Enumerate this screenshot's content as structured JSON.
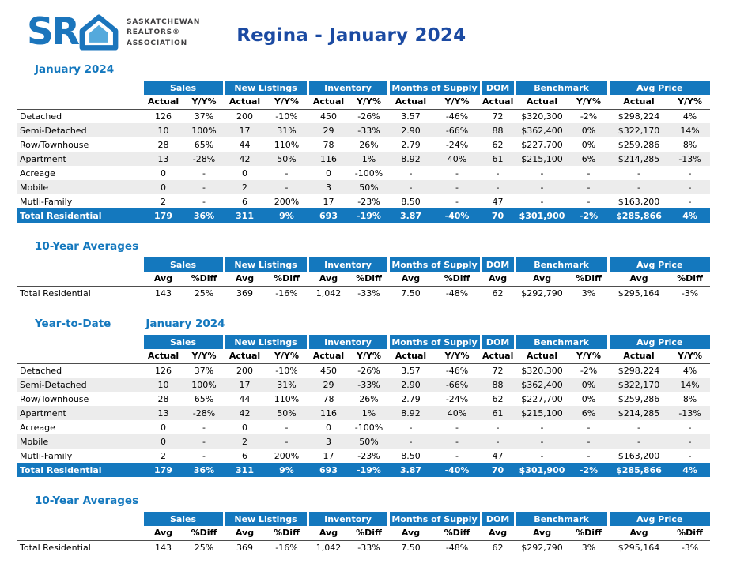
{
  "colors": {
    "table_header_blue": "#1478BE",
    "total_row_blue": "#1478BE",
    "title_blue": "#1B4AA2",
    "section_heading_blue": "#1478BE",
    "stripe_gray": "#ECECEC",
    "logo_blue": "#1B75BC",
    "logo_light_blue": "#54A9DC",
    "logo_text_gray": "#414042"
  },
  "header": {
    "logo_sr": "SR",
    "logo_org": [
      "SASKATCHEWAN",
      "REALTORS®",
      "ASSOCIATION"
    ],
    "title": "Regina - January 2024"
  },
  "column_groups": [
    {
      "label": "Sales",
      "span": 2
    },
    {
      "label": "New Listings",
      "span": 2
    },
    {
      "label": "Inventory",
      "span": 2
    },
    {
      "label": "Months of Supply",
      "span": 2
    },
    {
      "label": "DOM",
      "span": 1
    },
    {
      "label": "Benchmark",
      "span": 2
    },
    {
      "label": "Avg Price",
      "span": 2
    }
  ],
  "monthly_subheaders": [
    "Actual",
    "Y/Y%",
    "Actual",
    "Y/Y%",
    "Actual",
    "Y/Y%",
    "Actual",
    "Y/Y%",
    "Actual",
    "Actual",
    "Y/Y%",
    "Actual",
    "Y/Y%"
  ],
  "avg_subheaders": [
    "Avg",
    "%Diff",
    "Avg",
    "%Diff",
    "Avg",
    "%Diff",
    "Avg",
    "%Diff",
    "Avg",
    "Avg",
    "%Diff",
    "Avg",
    "%Diff"
  ],
  "sections": [
    {
      "heading": "January 2024",
      "type": "monthly",
      "rows": [
        {
          "label": "Detached",
          "values": [
            "126",
            "37%",
            "200",
            "-10%",
            "450",
            "-26%",
            "3.57",
            "-46%",
            "72",
            "$320,300",
            "-2%",
            "$298,224",
            "4%"
          ]
        },
        {
          "label": "Semi-Detached",
          "values": [
            "10",
            "100%",
            "17",
            "31%",
            "29",
            "-33%",
            "2.90",
            "-66%",
            "88",
            "$362,400",
            "0%",
            "$322,170",
            "14%"
          ]
        },
        {
          "label": "Row/Townhouse",
          "values": [
            "28",
            "65%",
            "44",
            "110%",
            "78",
            "26%",
            "2.79",
            "-24%",
            "62",
            "$227,700",
            "0%",
            "$259,286",
            "8%"
          ]
        },
        {
          "label": "Apartment",
          "values": [
            "13",
            "-28%",
            "42",
            "50%",
            "116",
            "1%",
            "8.92",
            "40%",
            "61",
            "$215,100",
            "6%",
            "$214,285",
            "-13%"
          ]
        },
        {
          "label": "Acreage",
          "values": [
            "0",
            "-",
            "0",
            "-",
            "0",
            "-100%",
            "-",
            "-",
            "-",
            "-",
            "-",
            "-",
            "-"
          ]
        },
        {
          "label": "Mobile",
          "values": [
            "0",
            "-",
            "2",
            "-",
            "3",
            "50%",
            "-",
            "-",
            "-",
            "-",
            "-",
            "-",
            "-"
          ]
        },
        {
          "label": "Mutli-Family",
          "values": [
            "2",
            "-",
            "6",
            "200%",
            "17",
            "-23%",
            "8.50",
            "-",
            "47",
            "-",
            "-",
            "$163,200",
            "-"
          ]
        }
      ],
      "total": {
        "label": "Total Residential",
        "values": [
          "179",
          "36%",
          "311",
          "9%",
          "693",
          "-19%",
          "3.87",
          "-40%",
          "70",
          "$301,900",
          "-2%",
          "$285,866",
          "4%"
        ]
      }
    },
    {
      "heading": "10-Year Averages",
      "type": "avg",
      "rows": [
        {
          "label": "Total Residential",
          "values": [
            "143",
            "25%",
            "369",
            "-16%",
            "1,042",
            "-33%",
            "7.50",
            "-48%",
            "62",
            "$292,790",
            "3%",
            "$295,164",
            "-3%"
          ]
        }
      ]
    },
    {
      "heading": "Year-to-Date",
      "heading2": "January 2024",
      "type": "monthly",
      "rows": [
        {
          "label": "Detached",
          "values": [
            "126",
            "37%",
            "200",
            "-10%",
            "450",
            "-26%",
            "3.57",
            "-46%",
            "72",
            "$320,300",
            "-2%",
            "$298,224",
            "4%"
          ]
        },
        {
          "label": "Semi-Detached",
          "values": [
            "10",
            "100%",
            "17",
            "31%",
            "29",
            "-33%",
            "2.90",
            "-66%",
            "88",
            "$362,400",
            "0%",
            "$322,170",
            "14%"
          ]
        },
        {
          "label": "Row/Townhouse",
          "values": [
            "28",
            "65%",
            "44",
            "110%",
            "78",
            "26%",
            "2.79",
            "-24%",
            "62",
            "$227,700",
            "0%",
            "$259,286",
            "8%"
          ]
        },
        {
          "label": "Apartment",
          "values": [
            "13",
            "-28%",
            "42",
            "50%",
            "116",
            "1%",
            "8.92",
            "40%",
            "61",
            "$215,100",
            "6%",
            "$214,285",
            "-13%"
          ]
        },
        {
          "label": "Acreage",
          "values": [
            "0",
            "-",
            "0",
            "-",
            "0",
            "-100%",
            "-",
            "-",
            "-",
            "-",
            "-",
            "-",
            "-"
          ]
        },
        {
          "label": "Mobile",
          "values": [
            "0",
            "-",
            "2",
            "-",
            "3",
            "50%",
            "-",
            "-",
            "-",
            "-",
            "-",
            "-",
            "-"
          ]
        },
        {
          "label": "Mutli-Family",
          "values": [
            "2",
            "-",
            "6",
            "200%",
            "17",
            "-23%",
            "8.50",
            "-",
            "47",
            "-",
            "-",
            "$163,200",
            "-"
          ]
        }
      ],
      "total": {
        "label": "Total Residential",
        "values": [
          "179",
          "36%",
          "311",
          "9%",
          "693",
          "-19%",
          "3.87",
          "-40%",
          "70",
          "$301,900",
          "-2%",
          "$285,866",
          "4%"
        ]
      }
    },
    {
      "heading": "10-Year Averages",
      "type": "avg",
      "rows": [
        {
          "label": "Total Residential",
          "values": [
            "143",
            "25%",
            "369",
            "-16%",
            "1,042",
            "-33%",
            "7.50",
            "-48%",
            "62",
            "$292,790",
            "3%",
            "$295,164",
            "-3%"
          ]
        }
      ]
    }
  ]
}
